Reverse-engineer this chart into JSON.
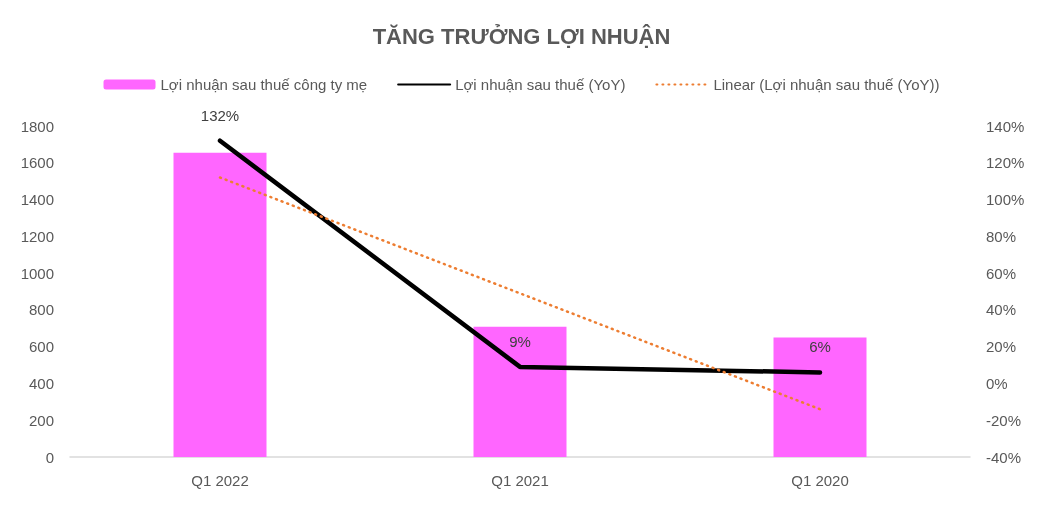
{
  "chart_data": {
    "type": "bar",
    "title": "TĂNG TRƯỞNG LỢI NHUẬN",
    "categories": [
      "Q1 2022",
      "Q1 2021",
      "Q1 2020"
    ],
    "series": [
      {
        "name": "Lợi nhuận sau thuế công ty mẹ",
        "color": "#ff66ff",
        "values": [
          1655,
          708,
          650
        ]
      },
      {
        "type": "line",
        "name": "Lợi nhuận sau thuế (YoY)",
        "color": "#000000",
        "axis": "y2",
        "values": [
          132,
          9,
          6
        ],
        "value_labels": [
          "132%",
          "9%",
          "6%"
        ],
        "line_style": "solid"
      },
      {
        "type": "line",
        "name": "Linear (Lợi nhuận sau thuế (YoY))",
        "color": "#ed7d31",
        "axis": "y2",
        "values": [
          112,
          49,
          -14
        ],
        "line_style": "dotted"
      }
    ],
    "ylim": [
      0,
      1800
    ],
    "yticks": [
      0,
      200,
      400,
      600,
      800,
      1000,
      1200,
      1400,
      1600,
      1800
    ],
    "y2lim": [
      -40,
      140
    ],
    "y2ticks": [
      {
        "value": -40,
        "label": "-40%"
      },
      {
        "value": -20,
        "label": "-20%"
      },
      {
        "value": 0,
        "label": "0%"
      },
      {
        "value": 20,
        "label": "20%"
      },
      {
        "value": 40,
        "label": "40%"
      },
      {
        "value": 60,
        "label": "60%"
      },
      {
        "value": 80,
        "label": "80%"
      },
      {
        "value": 100,
        "label": "100%"
      },
      {
        "value": 120,
        "label": "120%"
      },
      {
        "value": 140,
        "label": "140%"
      }
    ],
    "legend": "top",
    "marker": "none",
    "grid": false
  }
}
